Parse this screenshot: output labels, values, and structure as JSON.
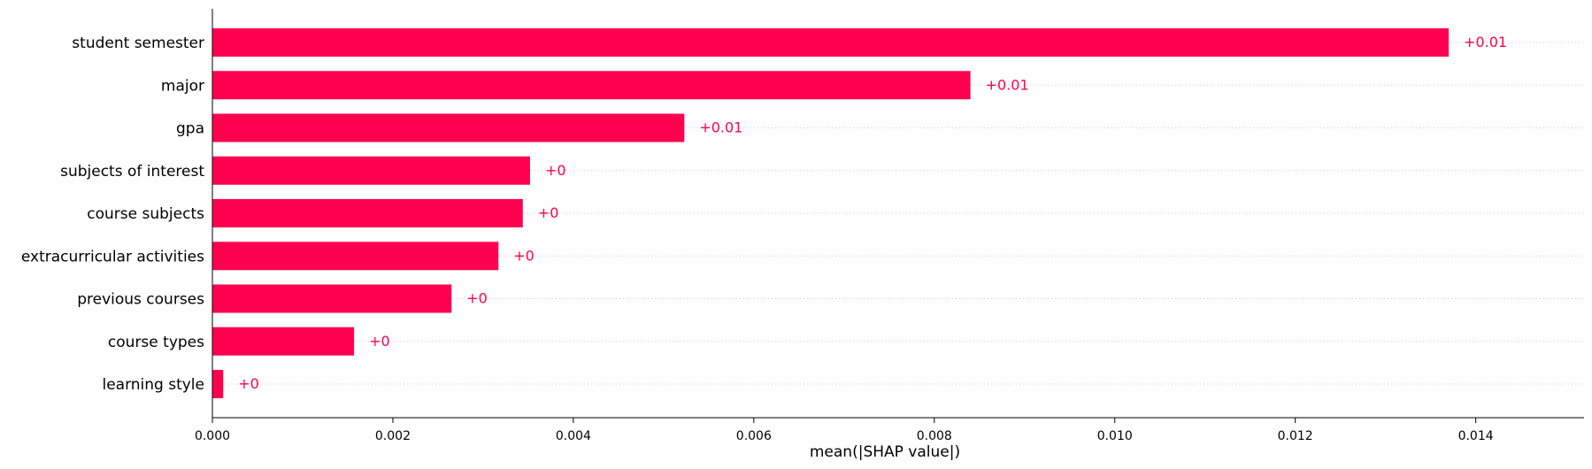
{
  "chart_data": {
    "type": "bar",
    "orientation": "horizontal",
    "categories": [
      "student semester",
      "major",
      "gpa",
      "subjects of interest",
      "course subjects",
      "extracurricular activities",
      "previous courses",
      "course types",
      "learning style"
    ],
    "values": [
      0.0137,
      0.0084,
      0.00523,
      0.00352,
      0.00344,
      0.00317,
      0.00265,
      0.00157,
      0.00012
    ],
    "value_labels": [
      "+0.01",
      "+0.01",
      "+0.01",
      "+0",
      "+0",
      "+0",
      "+0",
      "+0",
      "+0"
    ],
    "xlabel": "mean(|SHAP value|)",
    "xlim": [
      0,
      0.0152
    ],
    "xticks": [
      0.0,
      0.002,
      0.004,
      0.006,
      0.008,
      0.01,
      0.012,
      0.014
    ],
    "xtick_labels": [
      "0.000",
      "0.002",
      "0.004",
      "0.006",
      "0.008",
      "0.010",
      "0.012",
      "0.014"
    ],
    "grid": "horizontal dotted per row",
    "bar_color": "#ff0051"
  }
}
